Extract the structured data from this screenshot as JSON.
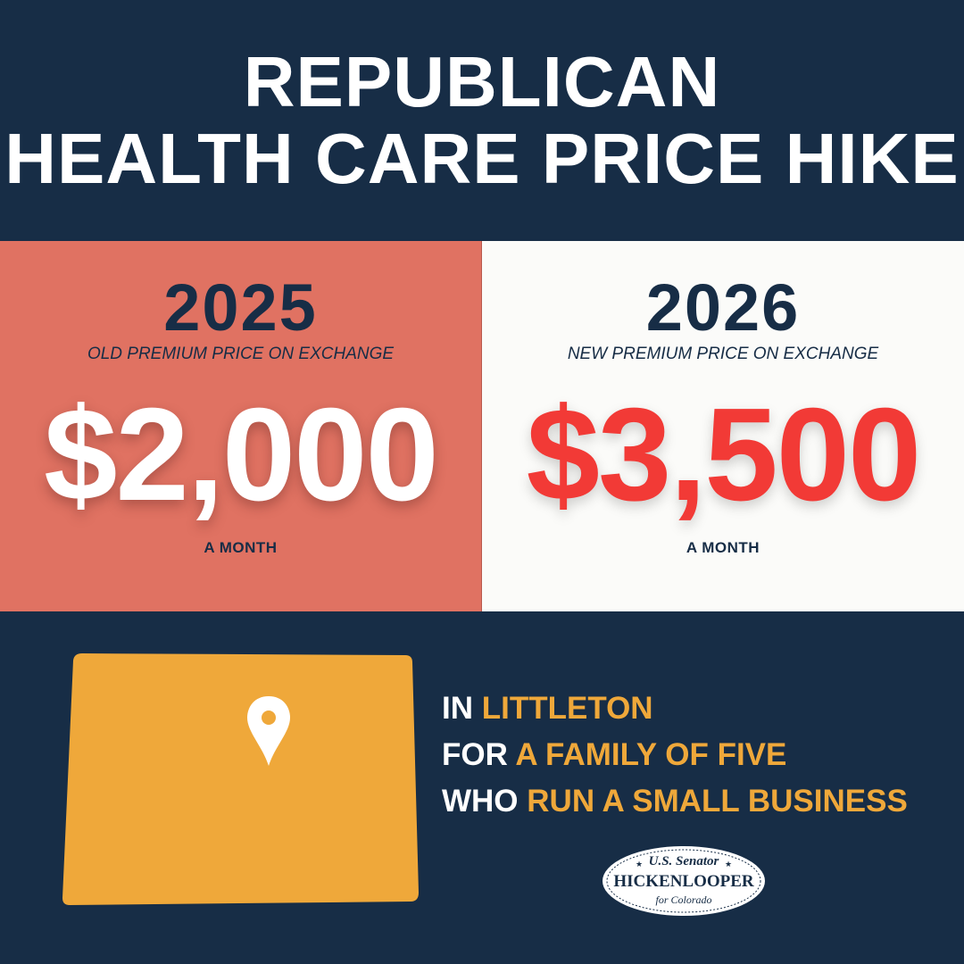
{
  "header": {
    "line1": "REPUBLICAN",
    "line2": "HEALTH CARE PRICE HIKE"
  },
  "old": {
    "year": "2025",
    "subtitle": "OLD PREMIUM PRICE ON EXCHANGE",
    "price": "$2,000",
    "period": "A MONTH"
  },
  "new": {
    "year": "2026",
    "subtitle": "NEW PREMIUM PRICE ON EXCHANGE",
    "price": "$3,500",
    "period": "A MONTH"
  },
  "location": {
    "line1_prefix": "IN",
    "line1_highlight": "LITTLETON",
    "line2_prefix": "FOR",
    "line2_highlight": "A FAMILY OF FIVE",
    "line3_prefix": "WHO",
    "line3_highlight": "RUN A SMALL BUSINESS"
  },
  "seal": {
    "line1": "U.S. Senator",
    "line2": "HICKENLOOPER",
    "line3": "for Colorado"
  },
  "colors": {
    "navy": "#172d46",
    "coral": "#e07262",
    "offwhite": "#fbfbf9",
    "red": "#f23a36",
    "gold": "#efa83a"
  },
  "icons": {
    "map": "colorado-map-icon",
    "pin": "location-pin-icon"
  }
}
